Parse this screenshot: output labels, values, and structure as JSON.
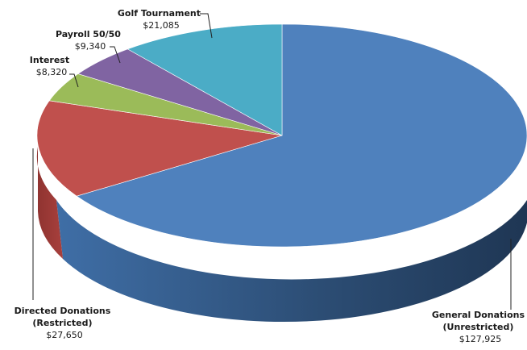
{
  "chart_data": {
    "type": "pie",
    "style": "3d",
    "title": "",
    "legend": "none",
    "slices": [
      {
        "label": "General Donations (Unrestricted)",
        "value": 127925,
        "value_label": "$127,925",
        "label_lines": [
          "General Donations",
          "(Unrestricted)"
        ],
        "color": "#4F81BD"
      },
      {
        "label": "Directed Donations (Restricted)",
        "value": 27650,
        "value_label": "$27,650",
        "label_lines": [
          "Directed Donations",
          "(Restricted)"
        ],
        "color": "#C0504D"
      },
      {
        "label": "Interest",
        "value": 8320,
        "value_label": "$8,320",
        "label_lines": [
          "Interest"
        ],
        "color": "#9BBB59"
      },
      {
        "label": "Payroll 50/50",
        "value": 9340,
        "value_label": "$9,340",
        "label_lines": [
          "Payroll 50/50"
        ],
        "color": "#8064A2"
      },
      {
        "label": "Golf Tournament",
        "value": 21085,
        "value_label": "$21,085",
        "label_lines": [
          "Golf Tournament"
        ],
        "color": "#4BACC6"
      }
    ]
  }
}
